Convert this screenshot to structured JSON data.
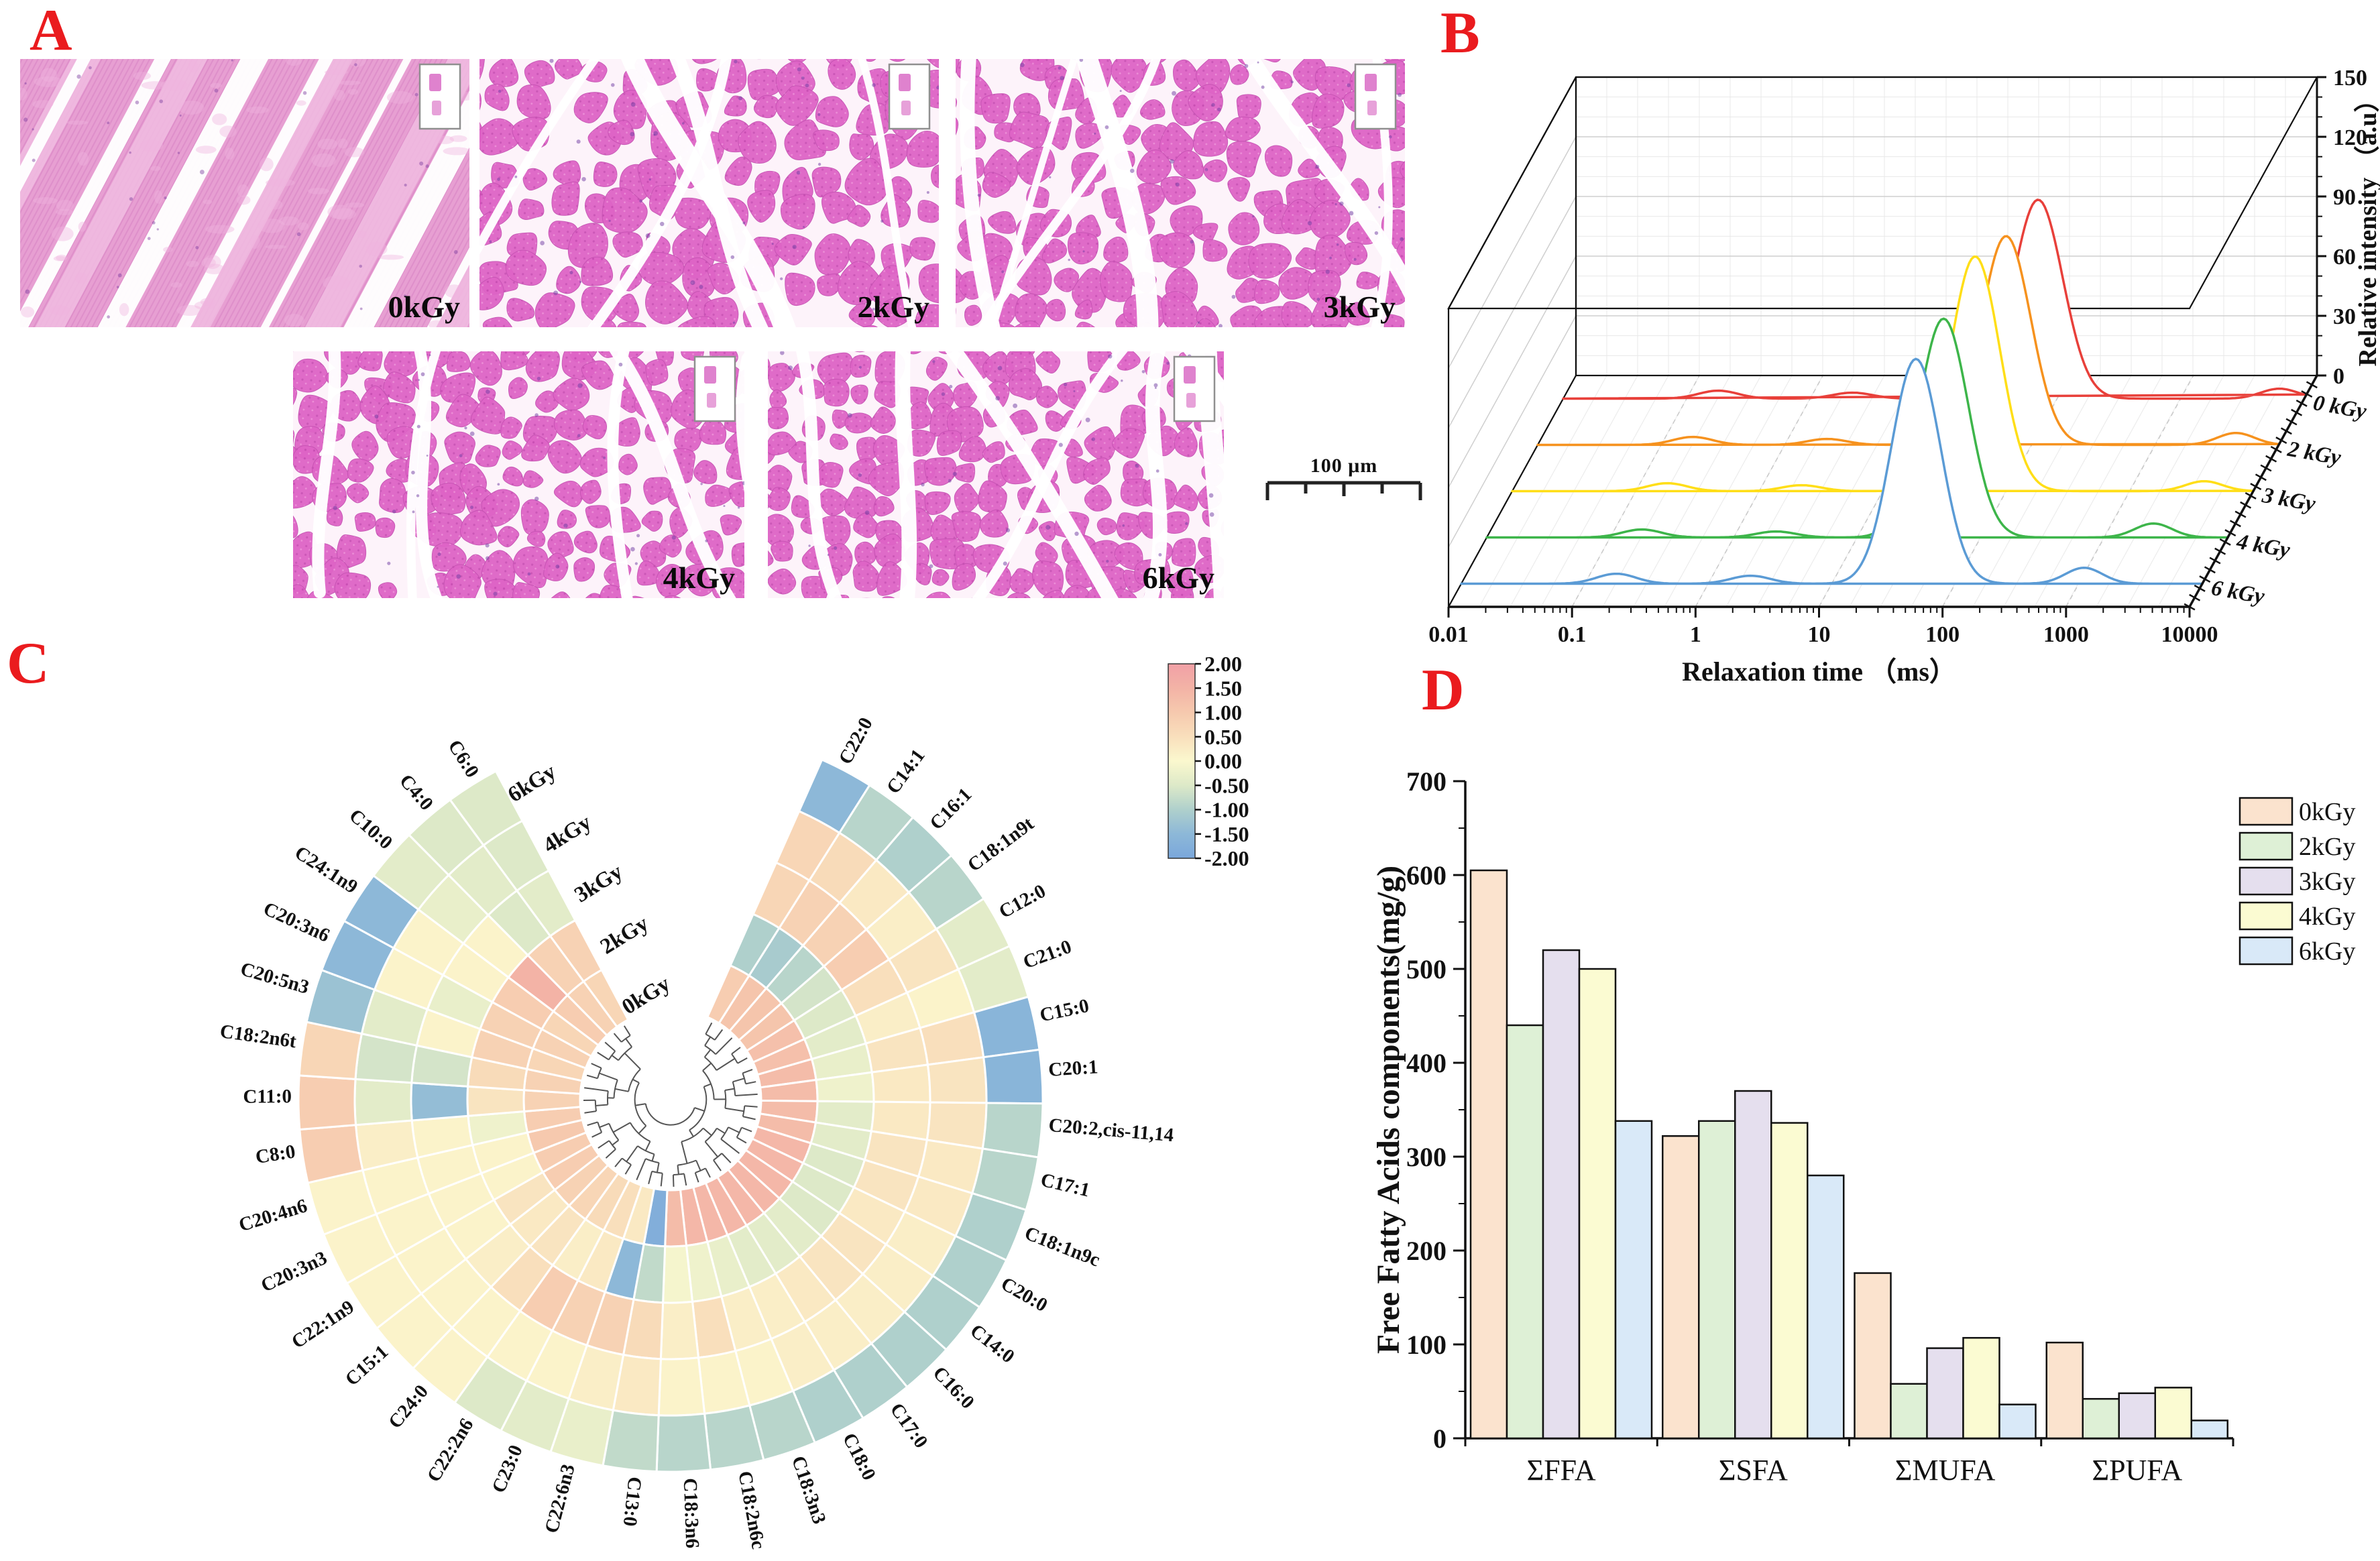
{
  "accent_red": "#EA1B1E",
  "figure": {
    "panel_a": {
      "label": "A",
      "description_type": "H&E stained muscle tissue micrographs",
      "images": [
        {
          "label": "0kGy"
        },
        {
          "label": "2kGy"
        },
        {
          "label": "3kGy"
        },
        {
          "label": "4kGy"
        },
        {
          "label": "6kGy"
        }
      ],
      "scale_bar_text": "100 μm"
    },
    "panel_b": {
      "label": "B"
    },
    "panel_c": {
      "label": "C"
    },
    "panel_d": {
      "label": "D"
    }
  },
  "chart_data": [
    {
      "panel": "B",
      "type": "line",
      "projection": "3d_waterfall",
      "x_axis": {
        "label": "Relaxation time （ms）",
        "scale": "log",
        "range": [
          0.01,
          10000
        ],
        "ticks": [
          "0.01",
          "0.1",
          "1",
          "10",
          "100",
          "1000",
          "10000"
        ]
      },
      "y_axis": {
        "label": "Relative intensity （a.u）",
        "range": [
          0,
          150
        ],
        "ticks": [
          0,
          30,
          60,
          90,
          120,
          150
        ]
      },
      "series": [
        {
          "name": "0 kGy",
          "color": "#E8403A",
          "peaks": [
            {
              "ms": 0.18,
              "au": 4,
              "sigma_log": 0.16
            },
            {
              "ms": 2.2,
              "au": 3,
              "sigma_log": 0.16
            },
            {
              "ms": 70,
              "au": 100,
              "sigma_log": 0.2
            },
            {
              "ms": 6300,
              "au": 5,
              "sigma_log": 0.15
            }
          ]
        },
        {
          "name": "2 kGy",
          "color": "#F6921E",
          "peaks": [
            {
              "ms": 0.18,
              "au": 4,
              "sigma_log": 0.16
            },
            {
              "ms": 2.2,
              "au": 3,
              "sigma_log": 0.16
            },
            {
              "ms": 62,
              "au": 105,
              "sigma_log": 0.2
            },
            {
              "ms": 4500,
              "au": 6,
              "sigma_log": 0.15
            }
          ]
        },
        {
          "name": "3 kGy",
          "color": "#FFDE17",
          "peaks": [
            {
              "ms": 0.18,
              "au": 4,
              "sigma_log": 0.16
            },
            {
              "ms": 2.2,
              "au": 3,
              "sigma_log": 0.16
            },
            {
              "ms": 56,
              "au": 118,
              "sigma_log": 0.2
            },
            {
              "ms": 4000,
              "au": 5,
              "sigma_log": 0.15
            }
          ]
        },
        {
          "name": "4 kGy",
          "color": "#3DB54A",
          "peaks": [
            {
              "ms": 0.18,
              "au": 4,
              "sigma_log": 0.16
            },
            {
              "ms": 2.2,
              "au": 3,
              "sigma_log": 0.16
            },
            {
              "ms": 50,
              "au": 110,
              "sigma_log": 0.2
            },
            {
              "ms": 2500,
              "au": 7,
              "sigma_log": 0.15
            }
          ]
        },
        {
          "name": "6 kGy",
          "color": "#5B9BD5",
          "peaks": [
            {
              "ms": 0.18,
              "au": 5,
              "sigma_log": 0.16
            },
            {
              "ms": 2.2,
              "au": 4,
              "sigma_log": 0.16
            },
            {
              "ms": 48,
              "au": 113,
              "sigma_log": 0.2
            },
            {
              "ms": 1100,
              "au": 8,
              "sigma_log": 0.15
            }
          ]
        }
      ]
    },
    {
      "panel": "C",
      "type": "heatmap",
      "layout": "polar_annular_with_center_dendrogram",
      "rings_inner_to_outer": [
        "0kGy",
        "2kGy",
        "3kGy",
        "4kGy",
        "6kGy"
      ],
      "categories_clockwise_from_top_gap": [
        "C22:0",
        "C14:1",
        "C16:1",
        "C18:1n9t",
        "C12:0",
        "C21:0",
        "C15:0",
        "C20:1",
        "C20:2,cis-11,14",
        "C17:1",
        "C18:1n9c",
        "C20:0",
        "C14:0",
        "C16:0",
        "C17:0",
        "C18:0",
        "C18:3n3",
        "C18:2n6c",
        "C18:3n6",
        "C13:0",
        "C22:6n3",
        "C23:0",
        "C22:2n6",
        "C24:0",
        "C15:1",
        "C22:1n9",
        "C20:3n3",
        "C20:4n6",
        "C8:0",
        "C11:0",
        "C18:2n6t",
        "C20:5n3",
        "C20:3n6",
        "C24:1n9",
        "C10:0",
        "C4:0",
        "C6:0"
      ],
      "z_values": [
        [
          0.9,
          -1.0,
          0.7,
          0.7,
          -1.5
        ],
        [
          1.1,
          -1.1,
          0.8,
          0.6,
          -0.9
        ],
        [
          1.1,
          -0.9,
          0.8,
          0.3,
          -1.0
        ],
        [
          1.1,
          -0.6,
          0.9,
          0.2,
          -0.9
        ],
        [
          1.2,
          -0.5,
          0.5,
          0.4,
          -0.4
        ],
        [
          1.2,
          -0.4,
          0.2,
          0.1,
          -0.4
        ],
        [
          1.3,
          -0.3,
          0.4,
          0.5,
          -1.6
        ],
        [
          1.3,
          -0.2,
          0.3,
          0.4,
          -1.6
        ],
        [
          1.3,
          -0.4,
          0.3,
          0.4,
          -0.9
        ],
        [
          1.3,
          -0.4,
          0.4,
          0.3,
          -0.9
        ],
        [
          1.4,
          -0.5,
          0.4,
          0.3,
          -1.0
        ],
        [
          1.4,
          -0.5,
          0.3,
          0.2,
          -1.0
        ],
        [
          1.4,
          -0.5,
          0.4,
          0.2,
          -1.0
        ],
        [
          1.4,
          -0.4,
          0.4,
          0.2,
          -1.0
        ],
        [
          1.4,
          -0.4,
          0.3,
          0.2,
          -1.0
        ],
        [
          1.4,
          -0.4,
          0.2,
          0.2,
          -1.0
        ],
        [
          1.4,
          -0.3,
          0.2,
          0.1,
          -0.9
        ],
        [
          1.4,
          -0.2,
          0.5,
          0.1,
          -0.9
        ],
        [
          1.3,
          -0.1,
          0.2,
          0.1,
          -0.9
        ],
        [
          -1.8,
          -0.8,
          0.6,
          0.3,
          -0.8
        ],
        [
          0.3,
          -1.5,
          0.8,
          0.2,
          -0.3
        ],
        [
          0.5,
          0.3,
          0.8,
          0.1,
          -0.4
        ],
        [
          0.6,
          0.2,
          0.9,
          0.1,
          -0.5
        ],
        [
          0.7,
          0.4,
          0.5,
          0.1,
          0.1
        ],
        [
          0.8,
          0.3,
          0.2,
          0.1,
          0.1
        ],
        [
          0.9,
          0.4,
          0.1,
          0.1,
          0.1
        ],
        [
          0.9,
          0.1,
          0.1,
          0.1,
          0.1
        ],
        [
          1.0,
          0.1,
          0.1,
          0.1,
          0.1
        ],
        [
          0.9,
          -0.2,
          0.1,
          0.2,
          0.9
        ],
        [
          0.8,
          0.4,
          -1.4,
          -0.4,
          0.9
        ],
        [
          0.8,
          0.6,
          -0.6,
          -0.6,
          0.7
        ],
        [
          0.7,
          0.8,
          0.1,
          -0.4,
          -1.3
        ],
        [
          0.8,
          0.8,
          -0.3,
          0.1,
          -1.5
        ],
        [
          0.7,
          0.9,
          0.1,
          0.1,
          -1.5
        ],
        [
          0.9,
          1.5,
          0.1,
          -0.3,
          -0.4
        ],
        [
          0.8,
          0.8,
          -0.5,
          -0.4,
          -0.5
        ],
        [
          0.7,
          0.8,
          -0.4,
          -0.5,
          -0.5
        ]
      ],
      "colorbar": {
        "tick_labels": [
          "2.00",
          "1.50",
          "1.00",
          "0.50",
          "0.00",
          "-0.50",
          "-1.00",
          "-1.50",
          "-2.00"
        ],
        "gradient_stops": [
          {
            "value": 2,
            "color": "#F1A0A6"
          },
          {
            "value": 1.5,
            "color": "#F3B3A6"
          },
          {
            "value": 1,
            "color": "#F6C9AE"
          },
          {
            "value": 0.5,
            "color": "#F9DFBC"
          },
          {
            "value": 0,
            "color": "#FBF8CE"
          },
          {
            "value": -0.5,
            "color": "#DDE9C8"
          },
          {
            "value": -1,
            "color": "#AFD0CC"
          },
          {
            "value": -1.5,
            "color": "#8DB8D8"
          },
          {
            "value": -2,
            "color": "#7AA7DB"
          }
        ]
      }
    },
    {
      "panel": "D",
      "type": "bar",
      "categories": [
        "ΣFFA",
        "ΣSFA",
        "ΣMUFA",
        "ΣPUFA"
      ],
      "series": [
        {
          "name": "0kGy",
          "color": "#FBE3CE",
          "values": [
            605,
            322,
            176,
            102
          ]
        },
        {
          "name": "2kGy",
          "color": "#DEF0D6",
          "values": [
            440,
            338,
            58,
            42
          ]
        },
        {
          "name": "3kGy",
          "color": "#E5DFEE",
          "values": [
            520,
            370,
            96,
            48
          ]
        },
        {
          "name": "4kGy",
          "color": "#FBFBD2",
          "values": [
            500,
            336,
            107,
            54
          ]
        },
        {
          "name": "6kGy",
          "color": "#D9E9F8",
          "values": [
            338,
            280,
            36,
            19
          ]
        }
      ],
      "y_axis": {
        "label": "Free Fatty Acids components(mg/g)",
        "min": 0,
        "max": 700,
        "tick_step": 100
      },
      "legend_position": "top-right",
      "grid": false
    }
  ]
}
